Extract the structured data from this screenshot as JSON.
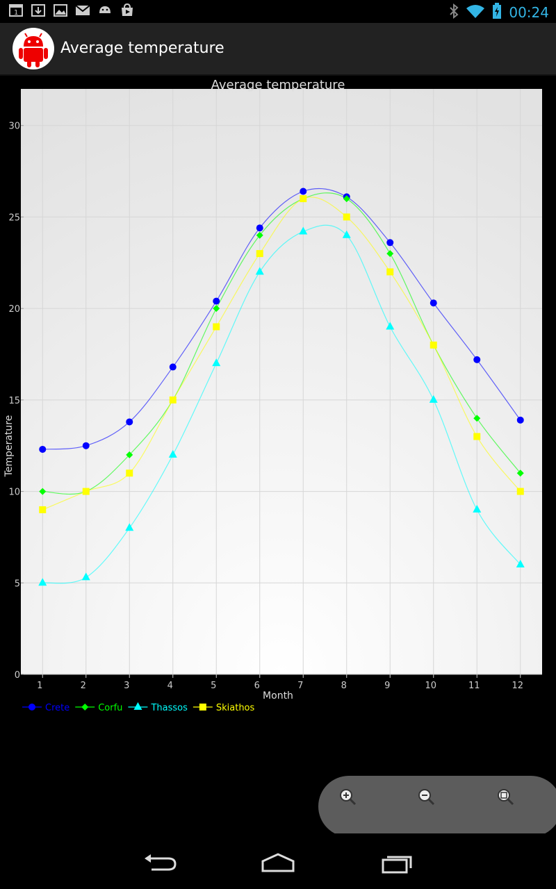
{
  "status_bar": {
    "time": "00:24",
    "left_icons": [
      "calendar-icon",
      "download-icon",
      "gallery-icon",
      "gmail-icon",
      "android-icon",
      "store-icon"
    ],
    "right_icons": [
      "bluetooth-icon",
      "wifi-icon",
      "battery-icon"
    ]
  },
  "action_bar": {
    "title": "Average temperature",
    "logo": "android-robot-icon"
  },
  "chart_data": {
    "type": "line",
    "title": "Average temperature",
    "xlabel": "Month",
    "ylabel": "Temperature",
    "x": [
      1,
      2,
      3,
      4,
      5,
      6,
      7,
      8,
      9,
      10,
      11,
      12
    ],
    "xlim": [
      0.5,
      12.5
    ],
    "ylim": [
      0,
      32
    ],
    "yticks": [
      0,
      5,
      10,
      15,
      20,
      25,
      30
    ],
    "xticks": [
      1,
      2,
      3,
      4,
      5,
      6,
      7,
      8,
      9,
      10,
      11,
      12
    ],
    "grid": true,
    "legend_position": "bottom-left",
    "series": [
      {
        "name": "Crete",
        "color": "#0000ff",
        "marker": "circle",
        "values": [
          12.3,
          12.5,
          13.8,
          16.8,
          20.4,
          24.4,
          26.4,
          26.1,
          23.6,
          20.3,
          17.2,
          13.9
        ]
      },
      {
        "name": "Corfu",
        "color": "#00ff00",
        "marker": "diamond",
        "values": [
          10,
          10,
          12,
          15,
          20,
          24,
          26,
          26,
          23,
          18,
          14,
          11
        ]
      },
      {
        "name": "Thassos",
        "color": "#00ffff",
        "marker": "triangle",
        "values": [
          5,
          5.3,
          8,
          12,
          17,
          22,
          24.2,
          24,
          19,
          15,
          9,
          6
        ]
      },
      {
        "name": "Skiathos",
        "color": "#ffff00",
        "marker": "square",
        "values": [
          9,
          10,
          11,
          15,
          19,
          23,
          26,
          25,
          22,
          18,
          13,
          10
        ]
      }
    ]
  },
  "zoom_controls": {
    "zoom_in": "zoom-in-icon",
    "zoom_out": "zoom-out-icon",
    "zoom_reset": "zoom-reset-icon"
  },
  "nav_bar": {
    "back": "back-icon",
    "home": "home-icon",
    "recents": "recents-icon"
  }
}
